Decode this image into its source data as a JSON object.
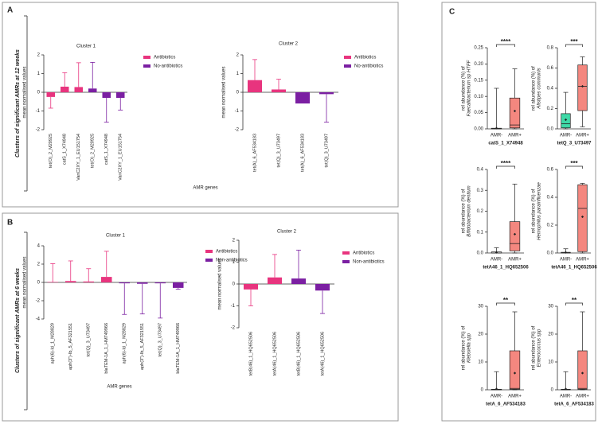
{
  "panels": [
    {
      "letter": "A",
      "side_label": "Clusters of significant AMRs at 12 weeks",
      "xlabel": "AMR genes"
    },
    {
      "letter": "B",
      "side_label": "Clusters of significant AMRs at 6 weeks",
      "xlabel": "AMR genes"
    },
    {
      "letter": "C"
    }
  ],
  "chart_data": [
    {
      "type": "bar",
      "title": "Cluster 1",
      "ylabel": "mean normalised values",
      "categories": [
        "tet(O)_2_M20925",
        "catS_1_X74948",
        "VanC2XY_1_EU151754",
        "tet(O)_2_M20925",
        "catS_1_X74948",
        "VanC2XY_1_EU151754"
      ],
      "series": [
        {
          "name": "Antibiotics",
          "color": "#e8347e",
          "values": [
            -0.25,
            0.3,
            0.28,
            null,
            null,
            null
          ],
          "errors": [
            0.6,
            0.75,
            1.3,
            null,
            null,
            null
          ]
        },
        {
          "name": "No-antibiotics",
          "color": "#7b1fa2",
          "values": [
            null,
            null,
            null,
            0.2,
            -0.3,
            -0.3
          ],
          "errors": [
            null,
            null,
            null,
            1.4,
            1.3,
            0.65
          ]
        }
      ],
      "ylim": [
        -2,
        2
      ],
      "yticks": [
        -2,
        -1,
        0,
        1,
        2
      ]
    },
    {
      "type": "bar",
      "title": "Cluster 2",
      "ylabel": "mean normalised values",
      "categories": [
        "tet(A)_6_AF534183",
        "tet(Q)_3_U73497",
        "tet(A)_6_AF534183",
        "tet(Q)_3_U73497"
      ],
      "series": [
        {
          "name": "Antibiotics",
          "color": "#e8347e",
          "values": [
            0.65,
            0.15,
            null,
            null
          ],
          "errors": [
            1.1,
            0.55,
            null,
            null
          ]
        },
        {
          "name": "No-antibiotics",
          "color": "#7b1fa2",
          "values": [
            null,
            null,
            -0.6,
            -0.1
          ],
          "errors": [
            null,
            null,
            0,
            1.5
          ]
        }
      ],
      "ylim": [
        -2,
        2
      ],
      "yticks": [
        -2,
        -1,
        0,
        1,
        2
      ]
    },
    {
      "type": "bar",
      "title": "Cluster 1",
      "ylabel": "mean normalised values",
      "categories": [
        "aph(6)-Id_1_M28829",
        "aph(3'')-Ib_5_AF321551",
        "tet(Q)_3_U73497",
        "blaTEM-1A_1_HM749966",
        "aph(6)-Id_1_M28829",
        "aph(3'')-Ib_5_AF321551",
        "tet(Q)_3_U73497",
        "blaTEM-1A_1_HM749966"
      ],
      "series": [
        {
          "name": "Antibiotics",
          "color": "#e8347e",
          "values": [
            0.05,
            0.15,
            0.1,
            0.6,
            null,
            null,
            null,
            null
          ],
          "errors": [
            2.0,
            2.2,
            1.4,
            2.8,
            null,
            null,
            null,
            null
          ]
        },
        {
          "name": "Non-antibiotics",
          "color": "#7b1fa2",
          "values": [
            null,
            null,
            null,
            null,
            -0.1,
            -0.15,
            -0.1,
            -0.6
          ],
          "errors": [
            null,
            null,
            null,
            null,
            3.4,
            3.3,
            3.8,
            0.15
          ]
        }
      ],
      "ylim": [
        -4,
        4
      ],
      "yticks": [
        -4,
        -2,
        0,
        2,
        4
      ]
    },
    {
      "type": "bar",
      "title": "Cluster 2",
      "ylabel": "mean normalised values",
      "categories": [
        "tetB(46)_1_HQ652506",
        "tetA(46)_1_HQ652506",
        "tetB(46)_1_HQ652506",
        "tetA(46)_1_HQ652506"
      ],
      "series": [
        {
          "name": "Antibiotics",
          "color": "#e8347e",
          "values": [
            -0.25,
            0.3,
            null,
            null
          ],
          "errors": [
            0.75,
            1.05,
            null,
            null
          ]
        },
        {
          "name": "Non-antibiotics",
          "color": "#7b1fa2",
          "values": [
            null,
            null,
            0.25,
            -0.3
          ],
          "errors": [
            null,
            null,
            1.3,
            1.05
          ]
        }
      ],
      "ylim": [
        -2,
        2
      ],
      "yticks": [
        -2,
        -1,
        0,
        1,
        2
      ]
    },
    {
      "type": "box",
      "ylabel": "rel abundance (%) of",
      "species": "Faecalibacterium sp HTFF",
      "xlabel": "catS_1_X74948",
      "significance": "****",
      "categories": [
        "AMR-",
        "AMR+"
      ],
      "colors": [
        "#ffffff",
        "#f4877f"
      ],
      "boxes": [
        {
          "min": 0,
          "q1": 0,
          "median": 0,
          "q3": 0.002,
          "max": 0.125,
          "mean": 0.002
        },
        {
          "min": 0,
          "q1": 0.003,
          "median": 0.012,
          "q3": 0.095,
          "max": 0.185,
          "mean": 0.055
        }
      ],
      "ylim": [
        0,
        0.25
      ],
      "yticks": [
        {
          "value": 0,
          "label": "0.00"
        },
        0.05,
        {
          "value": 0.1,
          "label": "0.10"
        },
        0.15,
        {
          "value": 0.2,
          "label": "0.20"
        },
        0.25
      ]
    },
    {
      "type": "box",
      "ylabel": "rel abundance (%) of",
      "species": "Alistipes communis",
      "xlabel": "tetQ_3_U73497",
      "significance": "***",
      "categories": [
        "AMR-",
        "AMR+"
      ],
      "colors": [
        "#3fd9a7",
        "#f4877f"
      ],
      "boxes": [
        {
          "min": 0,
          "q1": 0.01,
          "median": 0.05,
          "q3": 0.15,
          "max": 0.36,
          "mean": 0.09
        },
        {
          "min": 0.02,
          "q1": 0.18,
          "median": 0.42,
          "q3": 0.63,
          "max": 0.71,
          "mean": 0.42
        }
      ],
      "ylim": [
        0,
        0.8
      ],
      "yticks": [
        {
          "value": 0,
          "label": "0.0"
        },
        0.2,
        0.4,
        0.6,
        0.8
      ]
    },
    {
      "type": "box",
      "ylabel": "rel abundance (%) of",
      "species": "Bifidobacterium dentium",
      "xlabel": "tetA46_1_HQ652506",
      "significance": "****",
      "categories": [
        "AMR-",
        "AMR+"
      ],
      "colors": [
        "#ffffff",
        "#f4877f"
      ],
      "boxes": [
        {
          "min": 0,
          "q1": 0,
          "median": 0,
          "q3": 0.005,
          "max": 0.025,
          "mean": 0.003
        },
        {
          "min": 0,
          "q1": 0.01,
          "median": 0.045,
          "q3": 0.15,
          "max": 0.33,
          "mean": 0.09
        }
      ],
      "ylim": [
        0,
        0.4
      ],
      "yticks": [
        {
          "value": 0,
          "label": "0.0"
        },
        0.1,
        0.2,
        0.3,
        0.4
      ]
    },
    {
      "type": "box",
      "ylabel": "rel abundance (%) of",
      "species": "Hemophilus parainfluenzae",
      "xlabel": "tetA46_1_HQ652506",
      "significance": "***",
      "categories": [
        "AMR-",
        "AMR+"
      ],
      "colors": [
        "#ffffff",
        "#f4877f"
      ],
      "boxes": [
        {
          "min": 0,
          "q1": 0,
          "median": 0,
          "q3": 0.005,
          "max": 0.03,
          "mean": 0.004
        },
        {
          "min": 0,
          "q1": 0.01,
          "median": 0.32,
          "q3": 0.49,
          "max": 0.5,
          "mean": 0.26
        }
      ],
      "ylim": [
        0,
        0.6
      ],
      "yticks": [
        {
          "value": 0,
          "label": "0.0"
        },
        0.2,
        0.4,
        0.6
      ]
    },
    {
      "type": "box",
      "ylabel": "rel abundance (%) of",
      "species": "Klebsiella spp",
      "xlabel": "tetA_6_AF534183",
      "significance": "**",
      "categories": [
        "AMR-",
        "AMR+"
      ],
      "colors": [
        "#ffffff",
        "#f4877f"
      ],
      "boxes": [
        {
          "min": 0,
          "q1": 0,
          "median": 0,
          "q3": 0.2,
          "max": 6.5,
          "mean": 0.3
        },
        {
          "min": 0,
          "q1": 0.2,
          "median": 0.5,
          "q3": 14,
          "max": 28,
          "mean": 6
        }
      ],
      "ylim": [
        0,
        30
      ],
      "yticks": [
        0,
        10,
        20,
        30
      ]
    },
    {
      "type": "box",
      "ylabel": "rel abundance (%) of",
      "species": "Enterococcus spp",
      "xlabel": "tetA_6_AF534183",
      "significance": "**",
      "categories": [
        "AMR-",
        "AMR+"
      ],
      "colors": [
        "#ffffff",
        "#f4877f"
      ],
      "boxes": [
        {
          "min": 0,
          "q1": 0,
          "median": 0,
          "q3": 0.2,
          "max": 6.5,
          "mean": 0.3
        },
        {
          "min": 0,
          "q1": 0.2,
          "median": 0.5,
          "q3": 14,
          "max": 28,
          "mean": 6
        }
      ],
      "ylim": [
        0,
        30
      ],
      "yticks": [
        0,
        10,
        20,
        30
      ]
    }
  ]
}
